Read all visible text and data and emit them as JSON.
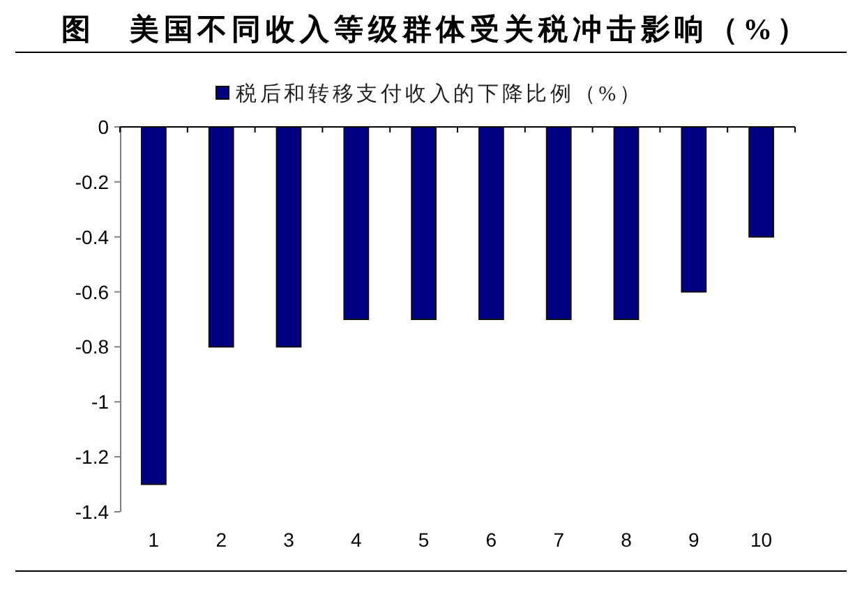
{
  "chart_data": {
    "type": "bar",
    "title": "图　美国不同收入等级群体受关税冲击影响（%）",
    "categories": [
      "1",
      "2",
      "3",
      "4",
      "5",
      "6",
      "7",
      "8",
      "9",
      "10"
    ],
    "series": [
      {
        "name": "税后和转移支付收入的下降比例（%）",
        "color": "#000080",
        "values": [
          -1.3,
          -0.8,
          -0.8,
          -0.7,
          -0.7,
          -0.7,
          -0.7,
          -0.7,
          -0.6,
          -0.4
        ]
      }
    ],
    "ylim": [
      -1.4,
      0
    ],
    "yticks": [
      0,
      -0.2,
      -0.4,
      -0.6,
      -0.8,
      -1,
      -1.2,
      -1.4
    ],
    "legend": "top"
  }
}
